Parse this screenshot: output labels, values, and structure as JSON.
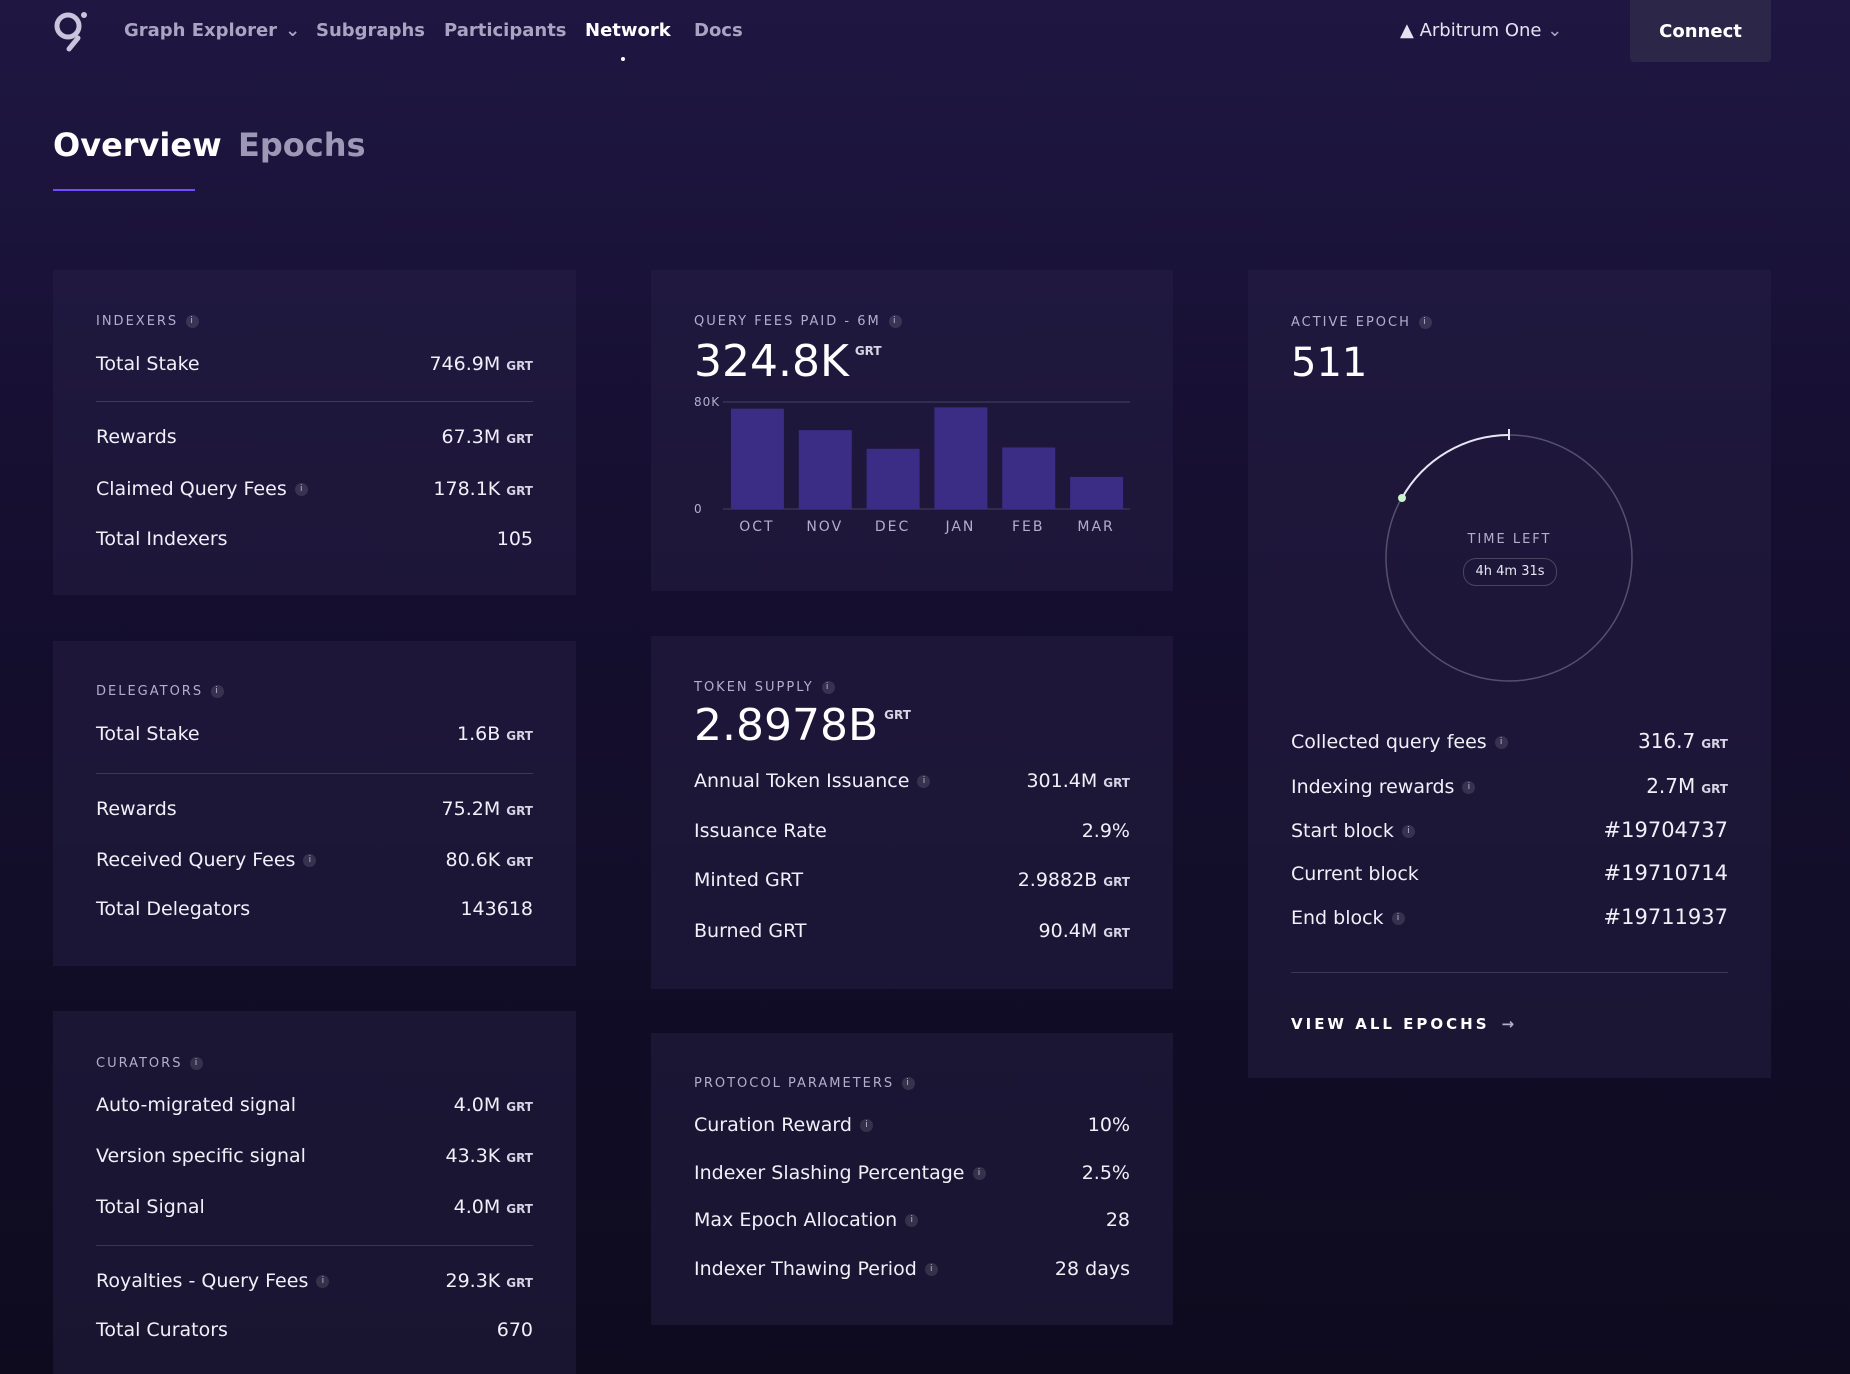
{
  "nav": {
    "items": [
      "Graph Explorer",
      "Subgraphs",
      "Participants",
      "Network",
      "Docs"
    ],
    "network": "Arbitrum One",
    "connect": "Connect"
  },
  "tabs": [
    "Overview",
    "Epochs"
  ],
  "indexers": {
    "title": "INDEXERS",
    "rows": [
      {
        "label": "Total Stake",
        "value": "746.9M",
        "unit": "GRT"
      },
      {
        "label": "Rewards",
        "value": "67.3M",
        "unit": "GRT"
      },
      {
        "label": "Claimed Query Fees",
        "value": "178.1K",
        "unit": "GRT"
      },
      {
        "label": "Total Indexers",
        "value": "105"
      }
    ]
  },
  "delegators": {
    "title": "DELEGATORS",
    "rows": [
      {
        "label": "Total Stake",
        "value": "1.6B",
        "unit": "GRT"
      },
      {
        "label": "Rewards",
        "value": "75.2M",
        "unit": "GRT"
      },
      {
        "label": "Received Query Fees",
        "value": "80.6K",
        "unit": "GRT"
      },
      {
        "label": "Total Delegators",
        "value": "143618"
      }
    ]
  },
  "curators": {
    "title": "CURATORS",
    "rows": [
      {
        "label": "Auto-migrated signal",
        "value": "4.0M",
        "unit": "GRT"
      },
      {
        "label": "Version specific signal",
        "value": "43.3K",
        "unit": "GRT"
      },
      {
        "label": "Total Signal",
        "value": "4.0M",
        "unit": "GRT"
      },
      {
        "label": "Royalties - Query Fees",
        "value": "29.3K",
        "unit": "GRT"
      },
      {
        "label": "Total Curators",
        "value": "670"
      }
    ]
  },
  "query_fees": {
    "total": "324.8K",
    "unit": "GRT"
  },
  "chart_data": {
    "type": "bar",
    "title": "QUERY FEES PAID - 6M",
    "categories": [
      "OCT",
      "NOV",
      "DEC",
      "JAN",
      "FEB",
      "MAR"
    ],
    "values": [
      75000,
      59000,
      45000,
      76000,
      46000,
      24000
    ],
    "color": "#3b2d85",
    "ylim": [
      0,
      80000
    ],
    "yticks": [
      0,
      {
        "value": 80000,
        "label": "80K"
      }
    ]
  },
  "token_supply": {
    "title": "TOKEN SUPPLY",
    "total": "2.8978B",
    "unit": "GRT",
    "rows": [
      {
        "label": "Annual Token Issuance",
        "value": "301.4M",
        "unit": "GRT"
      },
      {
        "label": "Issuance Rate",
        "value": "2.9%"
      },
      {
        "label": "Minted GRT",
        "value": "2.9882B",
        "unit": "GRT"
      },
      {
        "label": "Burned GRT",
        "value": "90.4M",
        "unit": "GRT"
      }
    ]
  },
  "protocol": {
    "title": "PROTOCOL PARAMETERS",
    "rows": [
      {
        "label": "Curation Reward",
        "value": "10%"
      },
      {
        "label": "Indexer Slashing Percentage",
        "value": "2.5%"
      },
      {
        "label": "Max Epoch Allocation",
        "value": "28"
      },
      {
        "label": "Indexer Thawing Period",
        "value": "28 days"
      }
    ]
  },
  "epoch": {
    "title": "ACTIVE EPOCH",
    "number": "511",
    "time_left_label": "TIME LEFT",
    "time_left": "4h 4m 31s",
    "rows": [
      {
        "label": "Collected query fees",
        "value": "316.7",
        "unit": "GRT"
      },
      {
        "label": "Indexing rewards",
        "value": "2.7M",
        "unit": "GRT"
      },
      {
        "label": "Start block",
        "value": "#19704737"
      },
      {
        "label": "Current block",
        "value": "#19710714"
      },
      {
        "label": "End block",
        "value": "#19711937"
      }
    ],
    "link": "VIEW ALL EPOCHS"
  }
}
